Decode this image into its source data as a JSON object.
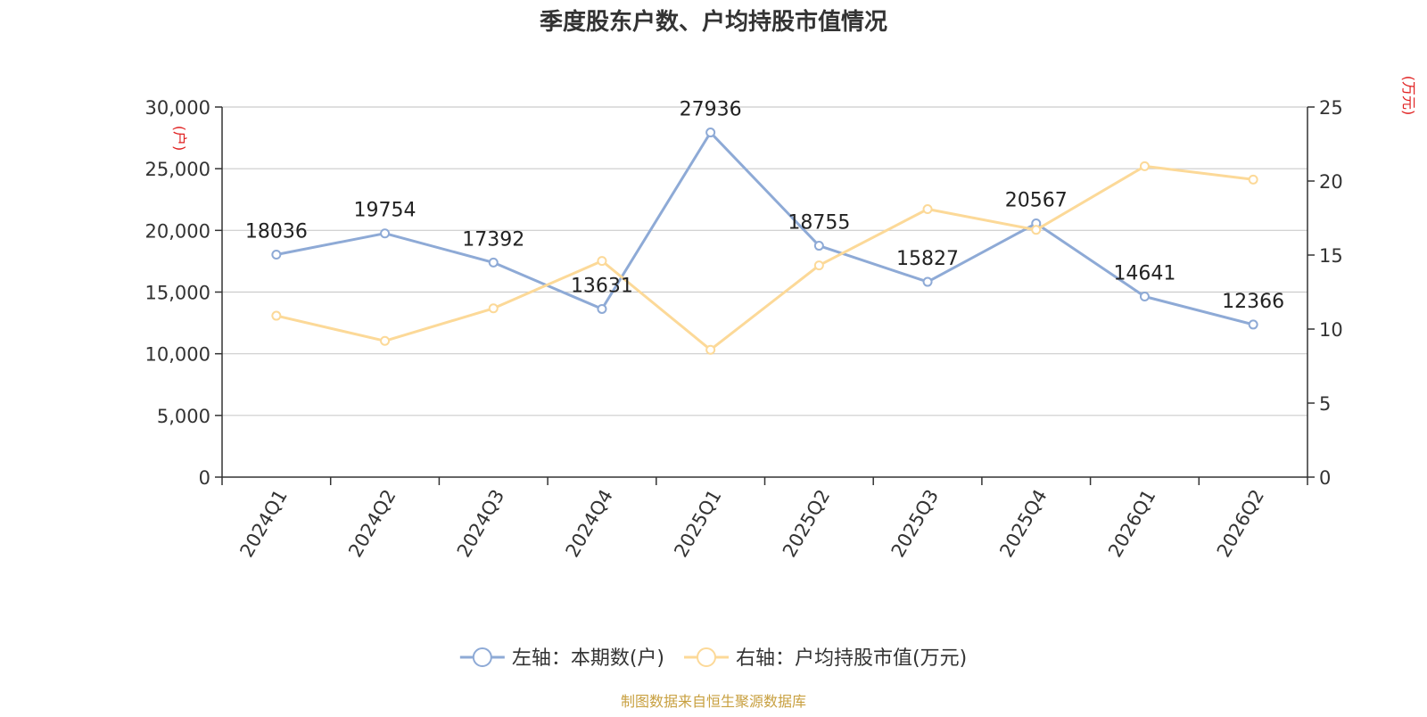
{
  "chart_data": {
    "type": "line",
    "title": "季度股东户数、户均持股市值情况",
    "categories": [
      "2024Q1",
      "2024Q2",
      "2024Q3",
      "2024Q4",
      "2025Q1",
      "2025Q2",
      "2025Q3",
      "2025Q4",
      "2026Q1",
      "2026Q2"
    ],
    "series": [
      {
        "name": "左轴：本期数(户)",
        "axis": "left",
        "color": "#8eaad6",
        "show_labels": true,
        "values": [
          18036,
          19754,
          17392,
          13631,
          27936,
          18755,
          15827,
          20567,
          14641,
          12366
        ]
      },
      {
        "name": "右轴：户均持股市值(万元)",
        "axis": "right",
        "color": "#fcd998",
        "show_labels": false,
        "values": [
          10.9,
          9.2,
          11.4,
          14.6,
          8.6,
          14.3,
          18.1,
          16.7,
          21.0,
          20.1
        ]
      }
    ],
    "left_axis": {
      "unit": "(户)",
      "ylim": [
        0,
        30000
      ],
      "ticks": [
        0,
        5000,
        10000,
        15000,
        20000,
        25000,
        30000
      ],
      "tick_labels": [
        "0",
        "5,000",
        "10,000",
        "15,000",
        "20,000",
        "25,000",
        "30,000"
      ]
    },
    "right_axis": {
      "unit": "(万元)",
      "ylim": [
        0,
        25
      ],
      "ticks": [
        0,
        5,
        10,
        15,
        20,
        25
      ],
      "tick_labels": [
        "0",
        "5",
        "10",
        "15",
        "20",
        "25"
      ]
    },
    "grid": true,
    "legend_position": "bottom-center"
  },
  "source": "制图数据来自恒生聚源数据库",
  "colors": {
    "title": "#333333",
    "axis_text": "#333333",
    "unit_text": "#e02020",
    "grid": "#cccccc",
    "source_text": "#c8a040"
  }
}
